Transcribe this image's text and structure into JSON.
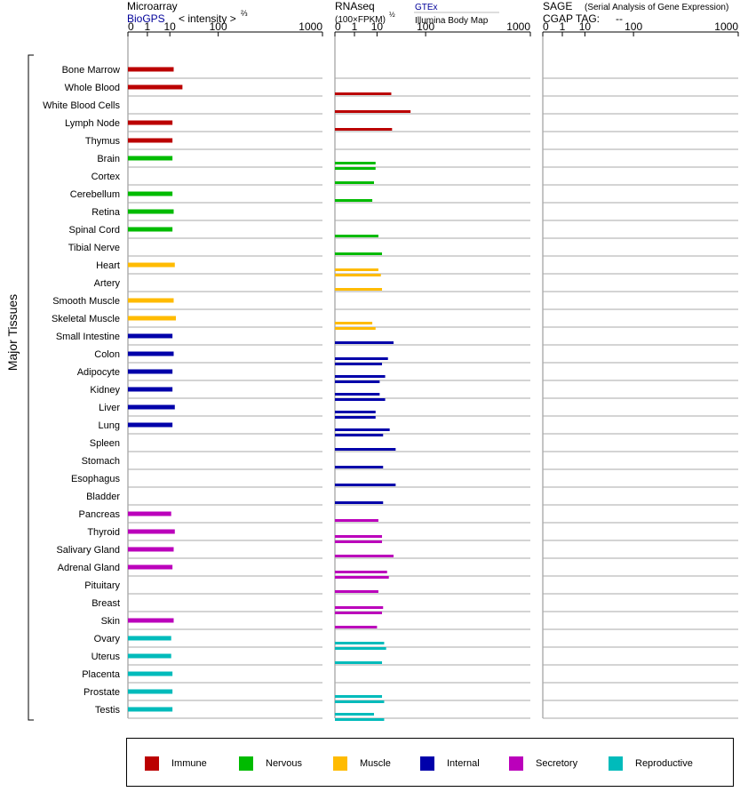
{
  "header": {
    "microarray_title": "Microarray",
    "biogps_link": "BioGPS",
    "intensity_label": "< intensity >",
    "intensity_exp": "⅔",
    "rnaseq_title": "RNAseq",
    "fpkm_label": "(100×FPKM)",
    "fpkm_exp": "½",
    "gtex_link": "GTEx",
    "illumina_label": "Illumina Body Map",
    "sage_title": "SAGE",
    "sage_subtitle": "(Serial Analysis of Gene Expression)",
    "cgap_label": "CGAP TAG:",
    "cgap_value": "--"
  },
  "group_label": "Major Tissues",
  "category_colors": {
    "Immune": "#bb0000",
    "Nervous": "#00bb00",
    "Muscle": "#ffbb00",
    "Internal": "#0000aa",
    "Secretory": "#bb00bb",
    "Reproductive": "#00bbbb"
  },
  "legend": [
    {
      "label": "Immune",
      "color": "#bb0000"
    },
    {
      "label": "Nervous",
      "color": "#00bb00"
    },
    {
      "label": "Muscle",
      "color": "#ffbb00"
    },
    {
      "label": "Internal",
      "color": "#0000aa"
    },
    {
      "label": "Secretory",
      "color": "#bb00bb"
    },
    {
      "label": "Reproductive",
      "color": "#00bbbb"
    }
  ],
  "chart_data": {
    "type": "bar",
    "orientation": "horizontal",
    "scale": "power",
    "tick_labels": [
      "0",
      "1",
      "10",
      "100",
      "1000"
    ],
    "panels": [
      {
        "title": "Microarray",
        "xlim": [
          0,
          1000
        ]
      },
      {
        "title": "RNAseq",
        "xlim": [
          0,
          1000
        ]
      },
      {
        "title": "SAGE",
        "xlim": [
          0,
          1000
        ]
      }
    ],
    "tissues": [
      {
        "name": "Bone Marrow",
        "category": "Immune",
        "microarray": 13,
        "rnaseq": []
      },
      {
        "name": "Whole Blood",
        "category": "Immune",
        "microarray": 22,
        "rnaseq": [
          24
        ]
      },
      {
        "name": "White Blood Cells",
        "category": "Immune",
        "microarray": null,
        "rnaseq": [
          58
        ]
      },
      {
        "name": "Lymph Node",
        "category": "Immune",
        "microarray": 12,
        "rnaseq": [
          25
        ]
      },
      {
        "name": "Thymus",
        "category": "Immune",
        "microarray": 12,
        "rnaseq": []
      },
      {
        "name": "Brain",
        "category": "Nervous",
        "microarray": 12,
        "rnaseq": [
          9,
          9
        ]
      },
      {
        "name": "Cortex",
        "category": "Nervous",
        "microarray": null,
        "rnaseq": [
          8
        ]
      },
      {
        "name": "Cerebellum",
        "category": "Nervous",
        "microarray": 12,
        "rnaseq": [
          7
        ]
      },
      {
        "name": "Retina",
        "category": "Nervous",
        "microarray": 13,
        "rnaseq": []
      },
      {
        "name": "Spinal Cord",
        "category": "Nervous",
        "microarray": 12,
        "rnaseq": [
          11
        ]
      },
      {
        "name": "Tibial Nerve",
        "category": "Nervous",
        "microarray": null,
        "rnaseq": [
          14
        ]
      },
      {
        "name": "Heart",
        "category": "Muscle",
        "microarray": 14,
        "rnaseq": [
          11,
          13
        ]
      },
      {
        "name": "Artery",
        "category": "Muscle",
        "microarray": null,
        "rnaseq": [
          14
        ]
      },
      {
        "name": "Smooth Muscle",
        "category": "Muscle",
        "microarray": 13,
        "rnaseq": []
      },
      {
        "name": "Skeletal Muscle",
        "category": "Muscle",
        "microarray": 15,
        "rnaseq": [
          7,
          9
        ]
      },
      {
        "name": "Small Intestine",
        "category": "Internal",
        "microarray": 12,
        "rnaseq": [
          27
        ]
      },
      {
        "name": "Colon",
        "category": "Internal",
        "microarray": 13,
        "rnaseq": [
          20,
          14
        ]
      },
      {
        "name": "Adipocyte",
        "category": "Internal",
        "microarray": 12,
        "rnaseq": [
          17,
          12
        ]
      },
      {
        "name": "Kidney",
        "category": "Internal",
        "microarray": 12,
        "rnaseq": [
          12,
          17
        ]
      },
      {
        "name": "Liver",
        "category": "Internal",
        "microarray": 14,
        "rnaseq": [
          9,
          9
        ]
      },
      {
        "name": "Lung",
        "category": "Internal",
        "microarray": 12,
        "rnaseq": [
          22,
          15
        ]
      },
      {
        "name": "Spleen",
        "category": "Internal",
        "microarray": null,
        "rnaseq": [
          30
        ]
      },
      {
        "name": "Stomach",
        "category": "Internal",
        "microarray": null,
        "rnaseq": [
          15
        ]
      },
      {
        "name": "Esophagus",
        "category": "Internal",
        "microarray": null,
        "rnaseq": [
          30
        ]
      },
      {
        "name": "Bladder",
        "category": "Internal",
        "microarray": null,
        "rnaseq": [
          15
        ]
      },
      {
        "name": "Pancreas",
        "category": "Secretory",
        "microarray": 11,
        "rnaseq": [
          11
        ]
      },
      {
        "name": "Thyroid",
        "category": "Secretory",
        "microarray": 14,
        "rnaseq": [
          14,
          14
        ]
      },
      {
        "name": "Salivary Gland",
        "category": "Secretory",
        "microarray": 13,
        "rnaseq": [
          27
        ]
      },
      {
        "name": "Adrenal Gland",
        "category": "Secretory",
        "microarray": 12,
        "rnaseq": [
          19,
          21
        ]
      },
      {
        "name": "Pituitary",
        "category": "Secretory",
        "microarray": null,
        "rnaseq": [
          11
        ]
      },
      {
        "name": "Breast",
        "category": "Secretory",
        "microarray": null,
        "rnaseq": [
          15,
          14
        ]
      },
      {
        "name": "Skin",
        "category": "Secretory",
        "microarray": 13,
        "rnaseq": [
          10
        ]
      },
      {
        "name": "Ovary",
        "category": "Reproductive",
        "microarray": 11,
        "rnaseq": [
          16,
          18
        ]
      },
      {
        "name": "Uterus",
        "category": "Reproductive",
        "microarray": 11,
        "rnaseq": [
          14
        ]
      },
      {
        "name": "Placenta",
        "category": "Reproductive",
        "microarray": 12,
        "rnaseq": []
      },
      {
        "name": "Prostate",
        "category": "Reproductive",
        "microarray": 12,
        "rnaseq": [
          14,
          16
        ]
      },
      {
        "name": "Testis",
        "category": "Reproductive",
        "microarray": 12,
        "rnaseq": [
          8,
          16
        ]
      }
    ]
  }
}
